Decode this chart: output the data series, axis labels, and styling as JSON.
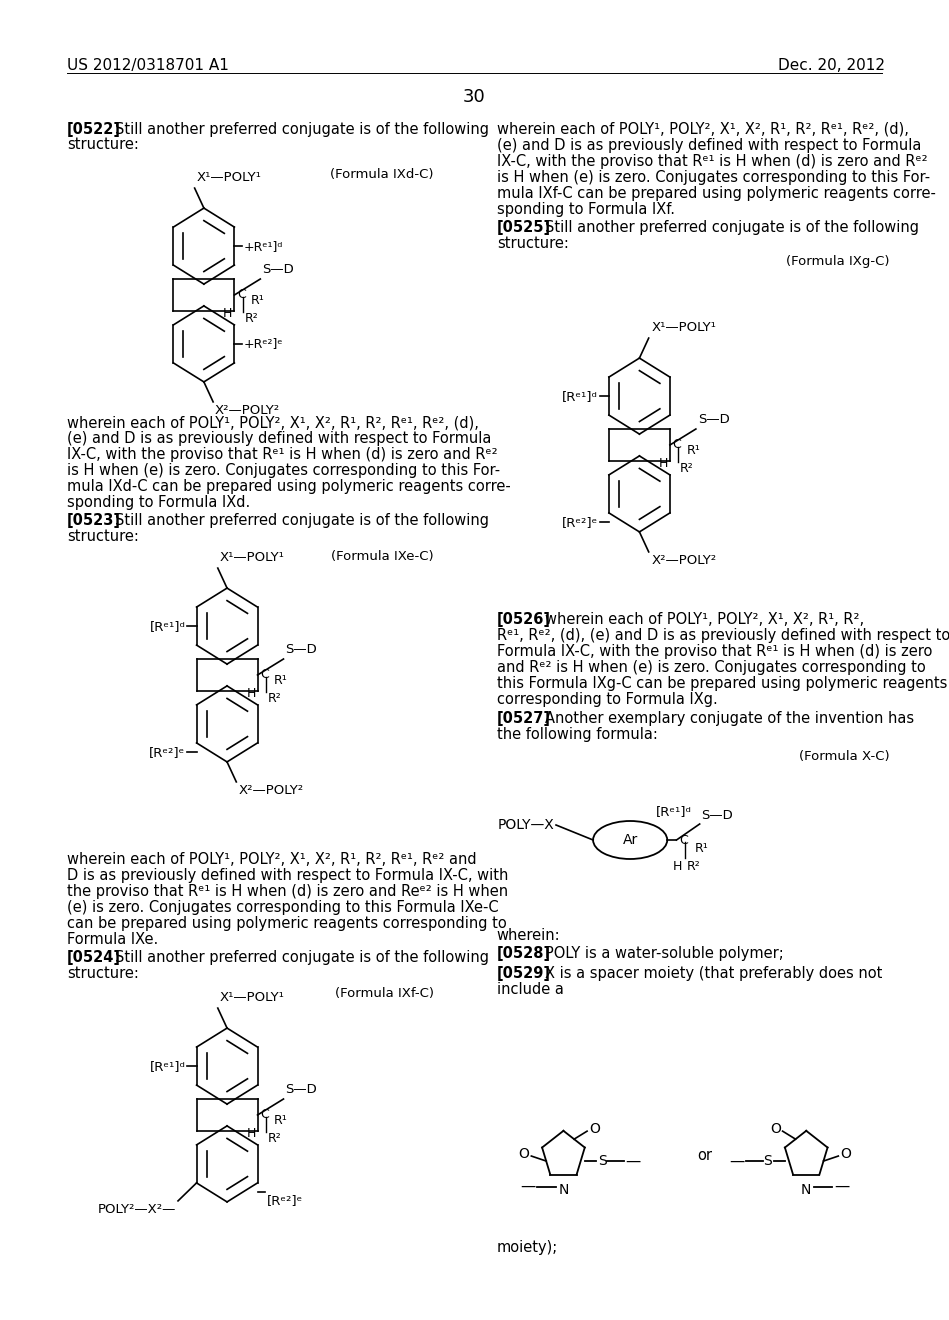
{
  "bg": "#ffffff",
  "header_left": "US 2012/0318701 A1",
  "header_right": "Dec. 20, 2012",
  "page_num": "30"
}
